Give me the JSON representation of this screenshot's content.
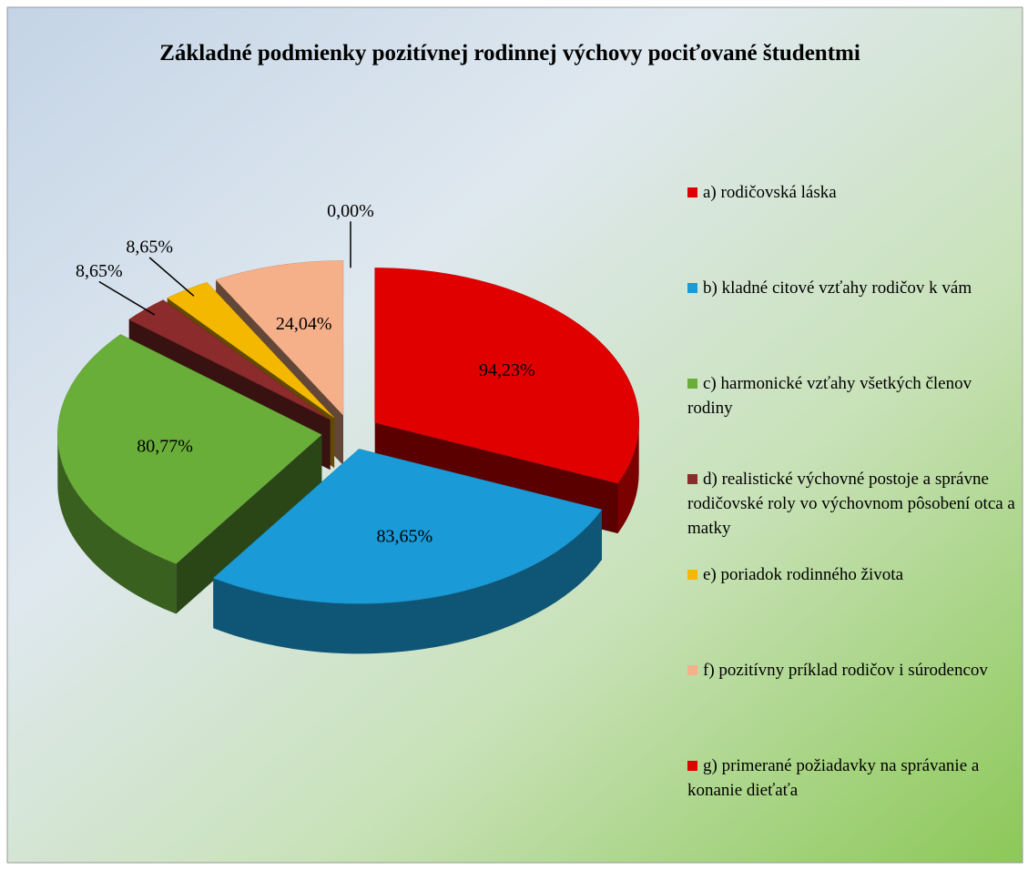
{
  "chart_data": {
    "type": "pie",
    "title": "Základné podmienky pozitívnej rodinnej výchovy pociťované študentmi",
    "categories": [
      "a) rodičovská láska",
      "b) kladné citové vzťahy rodičov k vám",
      "c) harmonické vzťahy všetkých členov rodiny",
      "d) realistické výchovné postoje a správne rodičovské roly vo výchovnom pôsobení otca a matky",
      "e) poriadok rodinného života",
      "f) pozitívny príklad rodičov i súrodencov",
      "g) primerané požiadavky na správanie a konanie dieťaťa"
    ],
    "values": [
      94.23,
      83.65,
      80.77,
      8.65,
      8.65,
      24.04,
      0.0
    ],
    "value_labels": [
      "94,23%",
      "83,65%",
      "80,77%",
      "8,65%",
      "8,65%",
      "24,04%",
      "0,00%"
    ],
    "colors": [
      "#e00000",
      "#1a9ad6",
      "#6aae3a",
      "#8b2b2b",
      "#f5b800",
      "#f5b08a",
      "#e00000"
    ],
    "legend": "right"
  }
}
